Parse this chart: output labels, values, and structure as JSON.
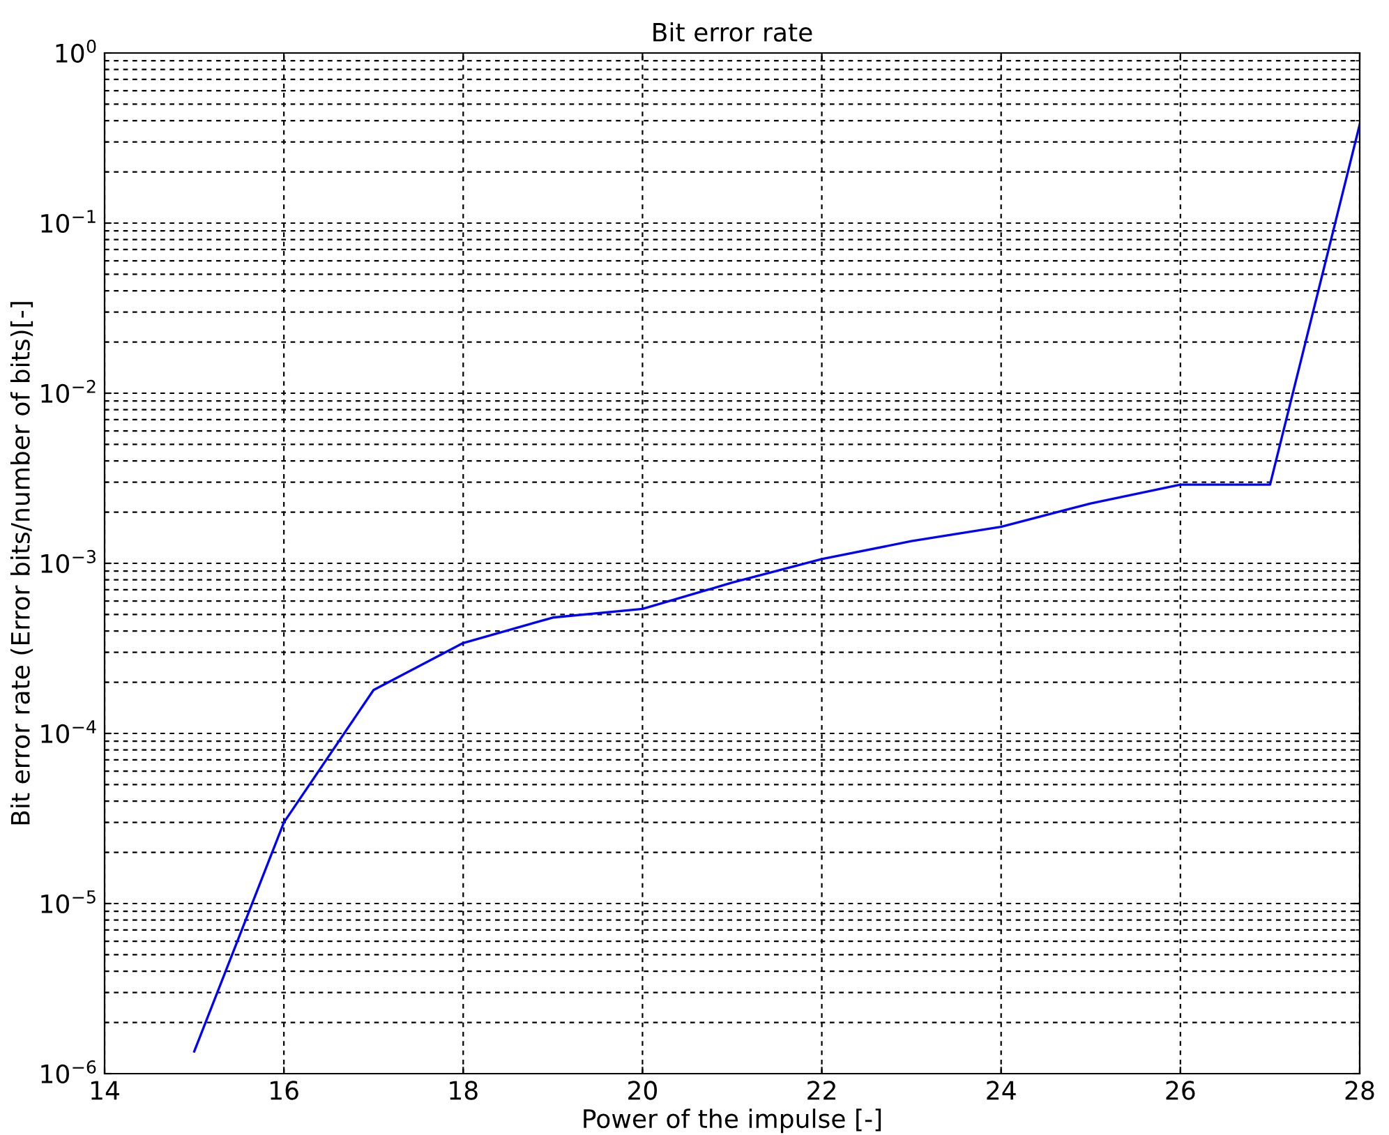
{
  "chart_data": {
    "type": "line",
    "title": "Bit error rate",
    "xlabel": "Power of the impulse [-]",
    "ylabel": "Bit error rate (Error bits/number of bits)[-]",
    "x": [
      15,
      16,
      17,
      18,
      19,
      20,
      21,
      22,
      23,
      24,
      25,
      26,
      27,
      28
    ],
    "series": [
      {
        "color": "#0000ff",
        "values": [
          1.35e-06,
          3e-05,
          0.00018,
          0.00034,
          0.00048,
          0.00054,
          0.00077,
          0.00106,
          0.00135,
          0.00164,
          0.00225,
          0.0029,
          0.0029,
          0.38
        ]
      }
    ],
    "log": "y",
    "xlim": [
      14,
      28
    ],
    "xticks": [
      14,
      16,
      18,
      20,
      22,
      24,
      26,
      28
    ],
    "ylim": [
      1e-06,
      1
    ],
    "yticks": [
      {
        "value": 1e-06,
        "label": "10$^{−6}$"
      },
      {
        "value": 1e-05,
        "label": "10$^{−5}$"
      },
      {
        "value": 0.0001,
        "label": "10$^{−4}$"
      },
      {
        "value": 0.001,
        "label": "10$^{−3}$"
      },
      {
        "value": 0.01,
        "label": "10$^{−2}$"
      },
      {
        "value": 0.1,
        "label": "10$^{−1}$"
      },
      {
        "value": 1,
        "label": "10$^{0}$"
      }
    ],
    "grid": true,
    "line_style": "solid"
  }
}
